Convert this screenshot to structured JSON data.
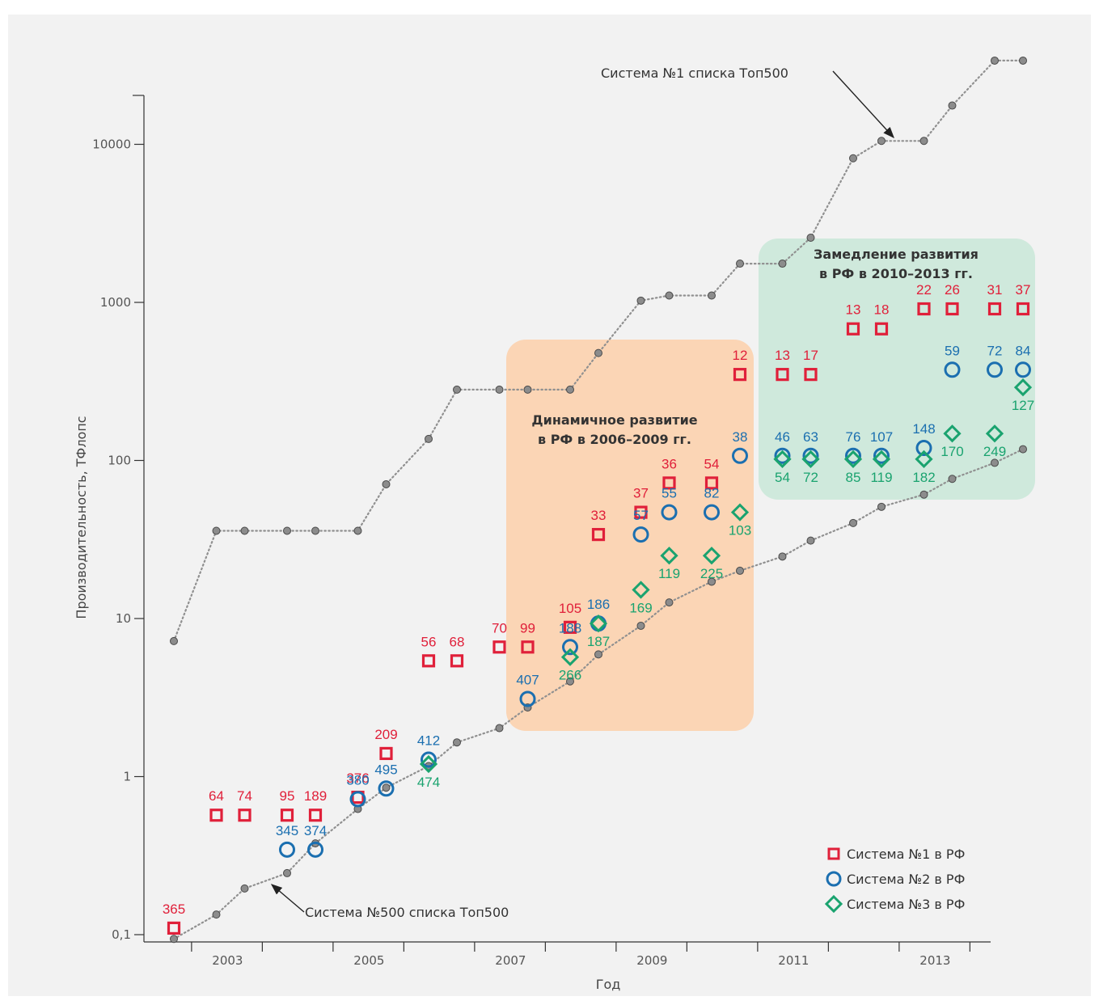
{
  "chart_data": {
    "type": "scatter",
    "title": "",
    "xlabel": "Год",
    "ylabel": "Производительность, ТФлопс",
    "y_scale": "log",
    "ylim": [
      0.1,
      20000
    ],
    "xlim": [
      2001.2,
      2013.9
    ],
    "x_ticks": [
      "2003",
      "2005",
      "2007",
      "2009",
      "2011",
      "2013"
    ],
    "y_ticks": [
      {
        "v": 0.1,
        "label": "0,1"
      },
      {
        "v": 1,
        "label": "1"
      },
      {
        "v": 10,
        "label": "10"
      },
      {
        "v": 100,
        "label": "100"
      },
      {
        "v": 1000,
        "label": "1000"
      },
      {
        "v": 10000,
        "label": "10000"
      }
    ],
    "colors": {
      "rf1": "#e0203a",
      "rf2": "#1b6fb0",
      "rf3": "#1aa36f",
      "top": "#8a8a8a"
    },
    "top500_no1": {
      "name": "Система №1 списка Топ500",
      "x": [
        2001.9,
        2002.5,
        2002.9,
        2003.5,
        2003.9,
        2004.5,
        2004.9,
        2005.5,
        2005.9,
        2006.5,
        2006.9,
        2007.5,
        2007.9,
        2008.5,
        2008.9,
        2009.5,
        2009.9,
        2010.5,
        2010.9,
        2011.5,
        2011.9,
        2012.5,
        2012.9,
        2013.5,
        2013.9
      ],
      "y": [
        7.2,
        35.9,
        35.9,
        35.9,
        35.9,
        35.9,
        70.7,
        136.8,
        280.6,
        280.6,
        280.6,
        280.6,
        478.2,
        1026,
        1105,
        1105,
        1759,
        1759,
        2566,
        8162,
        10510,
        10510,
        17590,
        33860,
        33860
      ]
    },
    "top500_no500": {
      "name": "Система №500 списка Топ500",
      "x": [
        2001.9,
        2002.5,
        2002.9,
        2003.5,
        2003.9,
        2004.5,
        2004.9,
        2005.5,
        2005.9,
        2006.5,
        2006.9,
        2007.5,
        2007.9,
        2008.5,
        2008.9,
        2009.5,
        2009.9,
        2010.5,
        2010.9,
        2011.5,
        2011.9,
        2012.5,
        2012.9,
        2013.5,
        2013.9
      ],
      "y": [
        0.094,
        0.134,
        0.196,
        0.245,
        0.378,
        0.624,
        0.851,
        1.166,
        1.646,
        2.026,
        2.737,
        4.005,
        5.929,
        9.0,
        12.64,
        17.1,
        20.05,
        24.67,
        31.12,
        40.19,
        50.9,
        60.82,
        76.5,
        96.62,
        117.8
      ]
    },
    "series": [
      {
        "name": "Система №1 в РФ",
        "marker": "square",
        "points": [
          {
            "x": 2001.9,
            "y": 0.11,
            "rank": "365"
          },
          {
            "x": 2002.5,
            "y": 0.57,
            "rank": "64"
          },
          {
            "x": 2002.9,
            "y": 0.57,
            "rank": "74"
          },
          {
            "x": 2003.5,
            "y": 0.57,
            "rank": "95"
          },
          {
            "x": 2003.9,
            "y": 0.57,
            "rank": "189"
          },
          {
            "x": 2004.5,
            "y": 0.74,
            "rank": "376"
          },
          {
            "x": 2004.9,
            "y": 1.4,
            "rank": "209"
          },
          {
            "x": 2005.5,
            "y": 5.4,
            "rank": "56"
          },
          {
            "x": 2005.9,
            "y": 5.4,
            "rank": "68"
          },
          {
            "x": 2006.5,
            "y": 6.6,
            "rank": "70"
          },
          {
            "x": 2006.9,
            "y": 6.6,
            "rank": "99"
          },
          {
            "x": 2007.5,
            "y": 8.8,
            "rank": "105"
          },
          {
            "x": 2007.9,
            "y": 34,
            "rank": "33"
          },
          {
            "x": 2008.5,
            "y": 47,
            "rank": "37"
          },
          {
            "x": 2008.9,
            "y": 72,
            "rank": "36"
          },
          {
            "x": 2009.5,
            "y": 72,
            "rank": "54"
          },
          {
            "x": 2009.9,
            "y": 350,
            "rank": "12"
          },
          {
            "x": 2010.5,
            "y": 350,
            "rank": "13"
          },
          {
            "x": 2010.9,
            "y": 350,
            "rank": "17"
          },
          {
            "x": 2011.5,
            "y": 680,
            "rank": "13"
          },
          {
            "x": 2011.9,
            "y": 680,
            "rank": "18"
          },
          {
            "x": 2012.5,
            "y": 910,
            "rank": "22"
          },
          {
            "x": 2012.9,
            "y": 910,
            "rank": "26"
          },
          {
            "x": 2013.5,
            "y": 910,
            "rank": "31"
          },
          {
            "x": 2013.9,
            "y": 910,
            "rank": "37"
          }
        ]
      },
      {
        "name": "Система №2 в РФ",
        "marker": "circle",
        "points": [
          {
            "x": 2003.5,
            "y": 0.345,
            "rank": "345"
          },
          {
            "x": 2003.9,
            "y": 0.345,
            "rank": "374"
          },
          {
            "x": 2004.5,
            "y": 0.72,
            "rank": "380"
          },
          {
            "x": 2004.9,
            "y": 0.84,
            "rank": "495"
          },
          {
            "x": 2005.5,
            "y": 1.28,
            "rank": "412"
          },
          {
            "x": 2006.9,
            "y": 3.1,
            "rank": "407"
          },
          {
            "x": 2007.5,
            "y": 6.6,
            "rank": "188"
          },
          {
            "x": 2007.9,
            "y": 9.3,
            "rank": "186"
          },
          {
            "x": 2008.5,
            "y": 34,
            "rank": "57"
          },
          {
            "x": 2008.9,
            "y": 47,
            "rank": "55"
          },
          {
            "x": 2009.5,
            "y": 47,
            "rank": "82"
          },
          {
            "x": 2009.9,
            "y": 107,
            "rank": "38"
          },
          {
            "x": 2010.5,
            "y": 107,
            "rank": "46"
          },
          {
            "x": 2010.9,
            "y": 107,
            "rank": "63"
          },
          {
            "x": 2011.5,
            "y": 107,
            "rank": "76"
          },
          {
            "x": 2011.9,
            "y": 107,
            "rank": "107"
          },
          {
            "x": 2012.5,
            "y": 120,
            "rank": "148"
          },
          {
            "x": 2012.9,
            "y": 375,
            "rank": "59"
          },
          {
            "x": 2013.5,
            "y": 375,
            "rank": "72"
          },
          {
            "x": 2013.9,
            "y": 375,
            "rank": "84"
          }
        ]
      },
      {
        "name": "Система №3 в РФ",
        "marker": "diamond",
        "points": [
          {
            "x": 2005.5,
            "y": 1.2,
            "rank": "474"
          },
          {
            "x": 2007.5,
            "y": 5.7,
            "rank": "266"
          },
          {
            "x": 2007.9,
            "y": 9.3,
            "rank": "187"
          },
          {
            "x": 2008.5,
            "y": 15.2,
            "rank": "169"
          },
          {
            "x": 2008.9,
            "y": 25,
            "rank": "119"
          },
          {
            "x": 2009.5,
            "y": 25,
            "rank": "225"
          },
          {
            "x": 2009.9,
            "y": 47,
            "rank": "103"
          },
          {
            "x": 2010.5,
            "y": 102,
            "rank": "54"
          },
          {
            "x": 2010.9,
            "y": 102,
            "rank": "72"
          },
          {
            "x": 2011.5,
            "y": 102,
            "rank": "85"
          },
          {
            "x": 2011.9,
            "y": 102,
            "rank": "119"
          },
          {
            "x": 2012.5,
            "y": 102,
            "rank": "182"
          },
          {
            "x": 2012.9,
            "y": 148,
            "rank": "170"
          },
          {
            "x": 2013.5,
            "y": 148,
            "rank": "249"
          },
          {
            "x": 2013.9,
            "y": 290,
            "rank": "127"
          }
        ]
      }
    ],
    "annotations": [
      {
        "text": "Система №1 списка Топ500"
      },
      {
        "text": "Система №500 списка Топ500"
      }
    ],
    "highlight_boxes": [
      {
        "lines": [
          "Динамичное развитие",
          "в РФ в 2006–2009 гг."
        ],
        "color": "#fbd5b5",
        "x_from": 2006.7,
        "x_to": 2010.0
      },
      {
        "lines": [
          "Замедление развития",
          "в РФ в 2010–2013 гг."
        ],
        "color": "#cfe9dc",
        "x_from": 2010.1,
        "x_to": 2014.8
      }
    ],
    "legend_position": "bottom-right"
  }
}
